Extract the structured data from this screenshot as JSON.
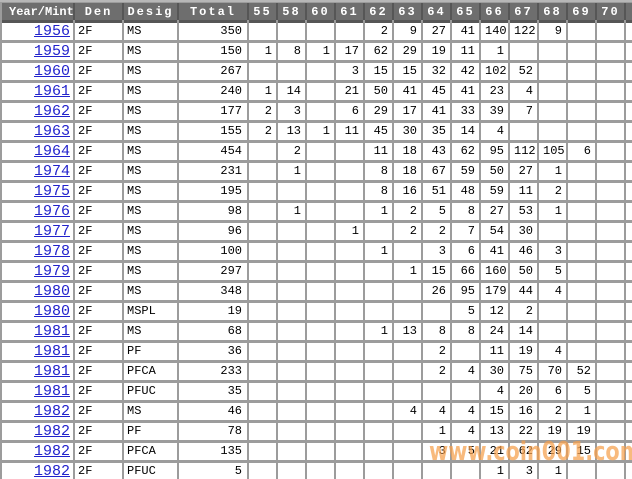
{
  "watermark": "www.coin001.com",
  "colors": {
    "header_bg": "#6e6e6e",
    "grid_bg": "#9c9c9c",
    "cell_bg": "#ffffff",
    "link": "#2222cc",
    "header_divider": "#565656",
    "watermark": "#f6a04c"
  },
  "table": {
    "columns": [
      "Year/Mint",
      "Den",
      "Desig",
      "Total",
      "55",
      "58",
      "60",
      "61",
      "62",
      "63",
      "64",
      "65",
      "66",
      "67",
      "68",
      "69",
      "70"
    ],
    "rows": [
      [
        "1956",
        "2F",
        "MS",
        "350",
        "",
        "",
        "",
        "",
        "2",
        "9",
        "27",
        "41",
        "140",
        "122",
        "9",
        "",
        ""
      ],
      [
        "1959",
        "2F",
        "MS",
        "150",
        "1",
        "8",
        "1",
        "17",
        "62",
        "29",
        "19",
        "11",
        "1",
        "",
        "",
        "",
        ""
      ],
      [
        "1960",
        "2F",
        "MS",
        "267",
        "",
        "",
        "",
        "3",
        "15",
        "15",
        "32",
        "42",
        "102",
        "52",
        "",
        "",
        ""
      ],
      [
        "1961",
        "2F",
        "MS",
        "240",
        "1",
        "14",
        "",
        "21",
        "50",
        "41",
        "45",
        "41",
        "23",
        "4",
        "",
        "",
        ""
      ],
      [
        "1962",
        "2F",
        "MS",
        "177",
        "2",
        "3",
        "",
        "6",
        "29",
        "17",
        "41",
        "33",
        "39",
        "7",
        "",
        "",
        ""
      ],
      [
        "1963",
        "2F",
        "MS",
        "155",
        "2",
        "13",
        "1",
        "11",
        "45",
        "30",
        "35",
        "14",
        "4",
        "",
        "",
        "",
        ""
      ],
      [
        "1964",
        "2F",
        "MS",
        "454",
        "",
        "2",
        "",
        "",
        "11",
        "18",
        "43",
        "62",
        "95",
        "112",
        "105",
        "6",
        ""
      ],
      [
        "1974",
        "2F",
        "MS",
        "231",
        "",
        "1",
        "",
        "",
        "8",
        "18",
        "67",
        "59",
        "50",
        "27",
        "1",
        "",
        ""
      ],
      [
        "1975",
        "2F",
        "MS",
        "195",
        "",
        "",
        "",
        "",
        "8",
        "16",
        "51",
        "48",
        "59",
        "11",
        "2",
        "",
        ""
      ],
      [
        "1976",
        "2F",
        "MS",
        "98",
        "",
        "1",
        "",
        "",
        "1",
        "2",
        "5",
        "8",
        "27",
        "53",
        "1",
        "",
        ""
      ],
      [
        "1977",
        "2F",
        "MS",
        "96",
        "",
        "",
        "",
        "1",
        "",
        "2",
        "2",
        "7",
        "54",
        "30",
        "",
        "",
        ""
      ],
      [
        "1978",
        "2F",
        "MS",
        "100",
        "",
        "",
        "",
        "",
        "1",
        "",
        "3",
        "6",
        "41",
        "46",
        "3",
        "",
        ""
      ],
      [
        "1979",
        "2F",
        "MS",
        "297",
        "",
        "",
        "",
        "",
        "",
        "1",
        "15",
        "66",
        "160",
        "50",
        "5",
        "",
        ""
      ],
      [
        "1980",
        "2F",
        "MS",
        "348",
        "",
        "",
        "",
        "",
        "",
        "",
        "26",
        "95",
        "179",
        "44",
        "4",
        "",
        ""
      ],
      [
        "1980",
        "2F",
        "MSPL",
        "19",
        "",
        "",
        "",
        "",
        "",
        "",
        "",
        "5",
        "12",
        "2",
        "",
        "",
        ""
      ],
      [
        "1981",
        "2F",
        "MS",
        "68",
        "",
        "",
        "",
        "",
        "1",
        "13",
        "8",
        "8",
        "24",
        "14",
        "",
        "",
        ""
      ],
      [
        "1981",
        "2F",
        "PF",
        "36",
        "",
        "",
        "",
        "",
        "",
        "",
        "2",
        "",
        "11",
        "19",
        "4",
        "",
        ""
      ],
      [
        "1981",
        "2F",
        "PFCA",
        "233",
        "",
        "",
        "",
        "",
        "",
        "",
        "2",
        "4",
        "30",
        "75",
        "70",
        "52",
        ""
      ],
      [
        "1981",
        "2F",
        "PFUC",
        "35",
        "",
        "",
        "",
        "",
        "",
        "",
        "",
        "",
        "4",
        "20",
        "6",
        "5",
        ""
      ],
      [
        "1982",
        "2F",
        "MS",
        "46",
        "",
        "",
        "",
        "",
        "",
        "4",
        "4",
        "4",
        "15",
        "16",
        "2",
        "1",
        ""
      ],
      [
        "1982",
        "2F",
        "PF",
        "78",
        "",
        "",
        "",
        "",
        "",
        "",
        "1",
        "4",
        "13",
        "22",
        "19",
        "19",
        ""
      ],
      [
        "1982",
        "2F",
        "PFCA",
        "135",
        "",
        "",
        "",
        "",
        "",
        "",
        "3",
        "5",
        "21",
        "62",
        "29",
        "15",
        ""
      ],
      [
        "1982",
        "2F",
        "PFUC",
        "5",
        "",
        "",
        "",
        "",
        "",
        "",
        "",
        "",
        "1",
        "3",
        "1",
        "",
        ""
      ]
    ]
  }
}
